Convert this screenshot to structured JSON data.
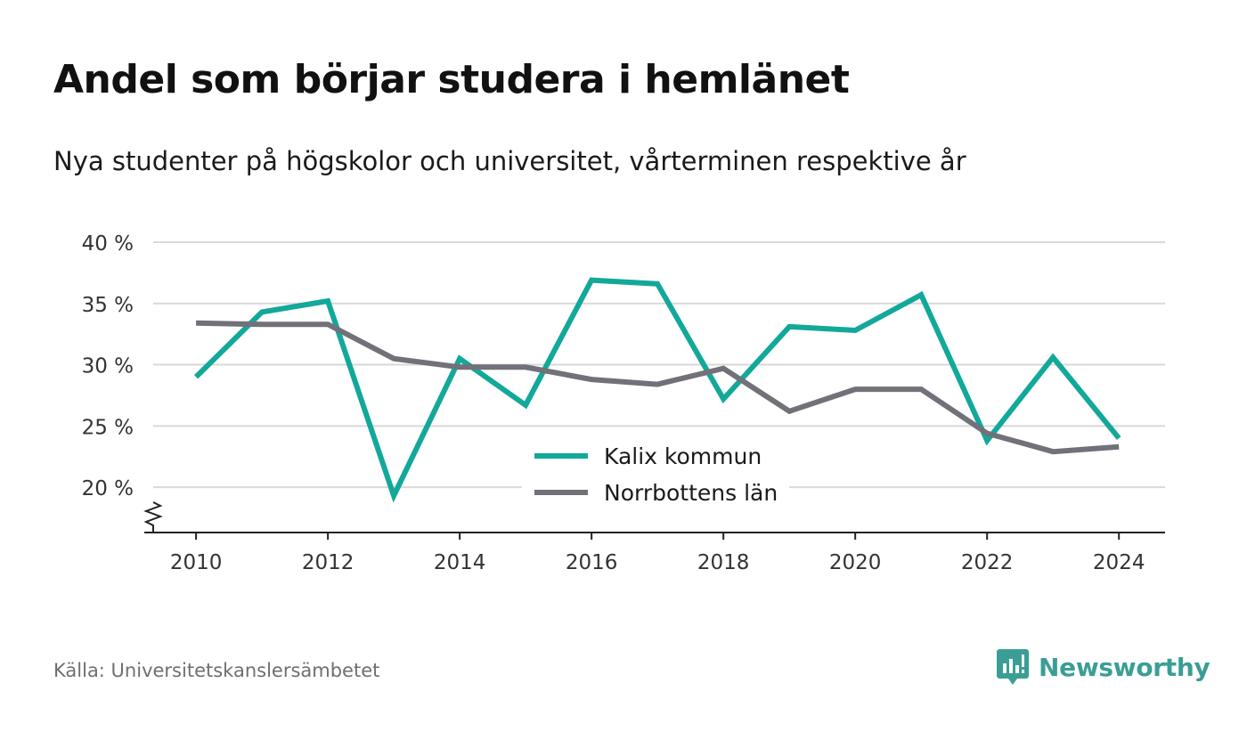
{
  "title": "Andel som börjar studera i hemlänet",
  "subtitle": "Nya studenter på högskolor och universitet, vårterminen respektive år",
  "source": "Källa: Universitetskanslersämbetet",
  "brand": "Newsworthy",
  "colors": {
    "kalix": "#12a89a",
    "norrbotten": "#727079",
    "grid": "#d9d9d9",
    "axis": "#222222",
    "brand": "#3a9e96"
  },
  "chart_data": {
    "type": "line",
    "x": [
      2010,
      2011,
      2012,
      2013,
      2014,
      2015,
      2016,
      2017,
      2018,
      2019,
      2020,
      2021,
      2022,
      2023,
      2024
    ],
    "xticks": [
      2010,
      2012,
      2014,
      2016,
      2018,
      2020,
      2022,
      2024
    ],
    "xtick_labels": [
      "2010",
      "2012",
      "2014",
      "2016",
      "2018",
      "2020",
      "2022",
      "2024"
    ],
    "yticks": [
      20,
      25,
      30,
      35,
      40
    ],
    "ytick_labels": [
      "20 %",
      "25 %",
      "30 %",
      "35 %",
      "40 %"
    ],
    "ylim": [
      16.3,
      40
    ],
    "xlim": [
      2009.35,
      2024.7
    ],
    "y_axis_break": true,
    "grid": true,
    "legend_position": "bottom-center",
    "series": [
      {
        "name": "Kalix kommun",
        "color": "#12a89a",
        "values": [
          29.0,
          34.3,
          35.2,
          19.3,
          30.5,
          26.7,
          36.9,
          36.6,
          27.2,
          33.1,
          32.8,
          35.7,
          23.8,
          30.6,
          24.0
        ]
      },
      {
        "name": "Norrbottens län",
        "color": "#727079",
        "values": [
          33.4,
          33.3,
          33.3,
          30.5,
          29.8,
          29.8,
          28.8,
          28.4,
          29.7,
          26.2,
          28.0,
          28.0,
          24.4,
          22.9,
          23.3
        ]
      }
    ]
  }
}
